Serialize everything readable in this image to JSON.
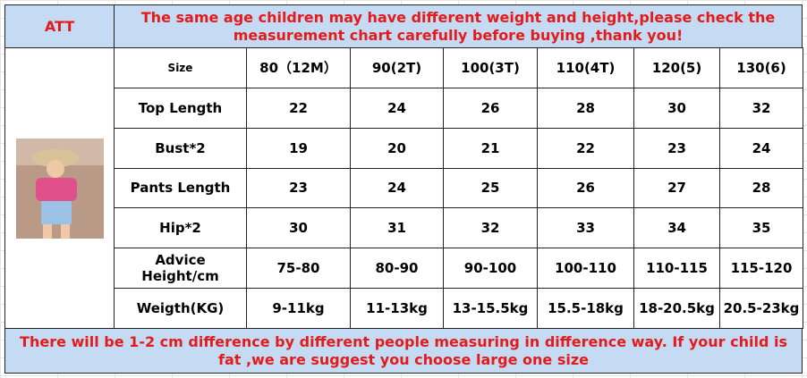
{
  "header": {
    "label": "ATT",
    "notice": "The same age children may have different weight and height,please check the measurement chart carefully before buying ,thank you!"
  },
  "table": {
    "columns": [
      "Size",
      "80（12M）",
      "90(2T)",
      "100(3T)",
      "110(4T)",
      "120(5)",
      "130(6)"
    ],
    "rows": [
      [
        "Top Length",
        22,
        24,
        26,
        28,
        30,
        32
      ],
      [
        "Bust*2",
        19,
        20,
        21,
        22,
        23,
        24
      ],
      [
        "Pants Length",
        23,
        24,
        25,
        26,
        27,
        28
      ],
      [
        "Hip*2",
        30,
        31,
        32,
        33,
        34,
        35
      ],
      [
        "Advice Height/cm",
        "75-80",
        "80-90",
        "90-100",
        "100-110",
        "110-115",
        "115-120"
      ],
      [
        "Weigth(KG)",
        "9-11kg",
        "11-13kg",
        "13-15.5kg",
        "15.5-18kg",
        "18-20.5kg",
        "20.5-23kg"
      ]
    ]
  },
  "footer": {
    "note": "There will be 1-2 cm difference by different people measuring in difference way. If your child is fat ,we are suggest you choose large one size"
  }
}
